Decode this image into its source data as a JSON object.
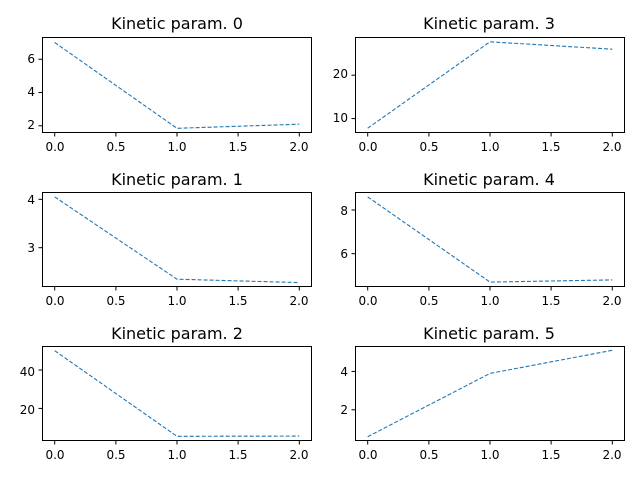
{
  "colors": {
    "series": "#1f77b4",
    "axes": "#000000",
    "background": "#ffffff"
  },
  "chart_data": [
    {
      "type": "line",
      "title": "Kinetic param. 0",
      "x": [
        0,
        1,
        2
      ],
      "series": [
        {
          "values": [
            7.0,
            1.85,
            2.1
          ]
        }
      ],
      "xlim": [
        -0.1,
        2.1
      ],
      "ylim": [
        1.6,
        7.3
      ],
      "xticks": [
        "0.0",
        "0.5",
        "1.0",
        "1.5",
        "2.0"
      ],
      "yticks": [
        "2",
        "4",
        "6"
      ],
      "line_style": "dashed",
      "grid": false
    },
    {
      "type": "line",
      "title": "Kinetic param. 3",
      "x": [
        0,
        1,
        2
      ],
      "series": [
        {
          "values": [
            7.8,
            27.7,
            26.0
          ]
        }
      ],
      "xlim": [
        -0.1,
        2.1
      ],
      "ylim": [
        6.8,
        28.7
      ],
      "xticks": [
        "0.0",
        "0.5",
        "1.0",
        "1.5",
        "2.0"
      ],
      "yticks": [
        "10",
        "20"
      ],
      "line_style": "dashed",
      "grid": false
    },
    {
      "type": "line",
      "title": "Kinetic param. 1",
      "x": [
        0,
        1,
        2
      ],
      "series": [
        {
          "values": [
            4.05,
            2.35,
            2.28
          ]
        }
      ],
      "xlim": [
        -0.1,
        2.1
      ],
      "ylim": [
        2.2,
        4.14
      ],
      "xticks": [
        "0.0",
        "0.5",
        "1.0",
        "1.5",
        "2.0"
      ],
      "yticks": [
        "3",
        "4"
      ],
      "line_style": "dashed",
      "grid": false
    },
    {
      "type": "line",
      "title": "Kinetic param. 4",
      "x": [
        0,
        1,
        2
      ],
      "series": [
        {
          "values": [
            8.6,
            4.7,
            4.8
          ]
        }
      ],
      "xlim": [
        -0.1,
        2.1
      ],
      "ylim": [
        4.5,
        8.8
      ],
      "xticks": [
        "0.0",
        "0.5",
        "1.0",
        "1.5",
        "2.0"
      ],
      "yticks": [
        "6",
        "8"
      ],
      "line_style": "dashed",
      "grid": false
    },
    {
      "type": "line",
      "title": "Kinetic param. 2",
      "x": [
        0,
        1,
        2
      ],
      "series": [
        {
          "values": [
            50.0,
            5.5,
            5.6
          ]
        }
      ],
      "xlim": [
        -0.1,
        2.1
      ],
      "ylim": [
        3.3,
        52.2
      ],
      "xticks": [
        "0.0",
        "0.5",
        "1.0",
        "1.5",
        "2.0"
      ],
      "yticks": [
        "20",
        "40"
      ],
      "line_style": "dashed",
      "grid": false
    },
    {
      "type": "line",
      "title": "Kinetic param. 5",
      "x": [
        0,
        1,
        2
      ],
      "series": [
        {
          "values": [
            0.6,
            3.9,
            5.1
          ]
        }
      ],
      "xlim": [
        -0.1,
        2.1
      ],
      "ylim": [
        0.4,
        5.3
      ],
      "xticks": [
        "0.0",
        "0.5",
        "1.0",
        "1.5",
        "2.0"
      ],
      "yticks": [
        "2",
        "4"
      ],
      "line_style": "dashed",
      "grid": false
    }
  ]
}
